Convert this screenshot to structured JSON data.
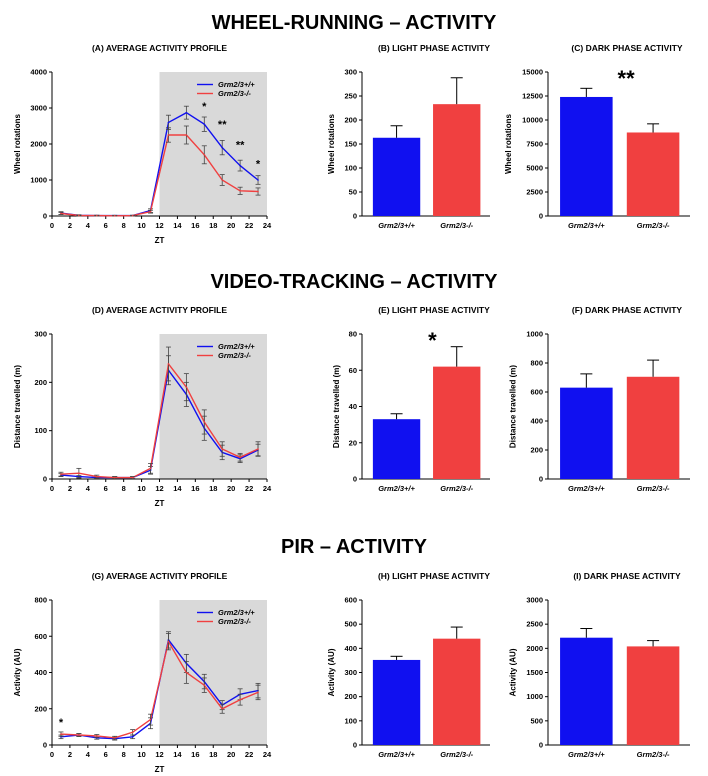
{
  "sections": [
    {
      "title": "WHEEL-RUNNING – ACTIVITY"
    },
    {
      "title": "VIDEO-TRACKING – ACTIVITY"
    },
    {
      "title": "PIR – ACTIVITY"
    }
  ],
  "colors": {
    "wildtype": "#1010f0",
    "knockout": "#f04040",
    "dark_phase_shade": "#d9d9d9"
  },
  "chart_data": [
    {
      "id": "A",
      "type": "line",
      "title": "(A) AVERAGE ACTIVITY PROFILE",
      "xlabel": "ZT",
      "ylabel": "Wheel rotations",
      "xlim": [
        0,
        24
      ],
      "ylim": [
        0,
        4000
      ],
      "xticks": [
        0,
        2,
        4,
        6,
        8,
        10,
        12,
        14,
        16,
        18,
        20,
        22,
        24
      ],
      "yticks": [
        0,
        1000,
        2000,
        3000,
        4000
      ],
      "shaded_x": [
        12,
        24
      ],
      "legend": "top-right",
      "x": [
        1,
        3,
        5,
        7,
        9,
        11,
        13,
        15,
        17,
        19,
        21,
        23
      ],
      "series": [
        {
          "name": "Grm2/3+/+",
          "color": "#1010f0",
          "values": [
            80,
            20,
            10,
            10,
            10,
            150,
            2600,
            2870,
            2550,
            1900,
            1400,
            1000
          ],
          "errors": [
            40,
            15,
            10,
            10,
            10,
            50,
            200,
            180,
            200,
            200,
            150,
            120
          ]
        },
        {
          "name": "Grm2/3-/-",
          "color": "#f04040",
          "values": [
            70,
            15,
            10,
            5,
            10,
            120,
            2250,
            2250,
            1700,
            1000,
            700,
            680
          ],
          "errors": [
            30,
            10,
            10,
            5,
            10,
            40,
            200,
            250,
            250,
            150,
            100,
            100
          ]
        }
      ],
      "annotations": [
        {
          "x": 17,
          "y": 2950,
          "text": "*"
        },
        {
          "x": 19,
          "y": 2450,
          "text": "**"
        },
        {
          "x": 21,
          "y": 1870,
          "text": "**"
        },
        {
          "x": 23,
          "y": 1350,
          "text": "*"
        }
      ]
    },
    {
      "id": "B",
      "type": "bar",
      "title": "(B) LIGHT PHASE ACTIVITY",
      "ylabel": "Wheel rotations",
      "ylim": [
        0,
        300
      ],
      "yticks": [
        0,
        50,
        100,
        150,
        200,
        250,
        300
      ],
      "categories": [
        "Grm2/3+/+",
        "Grm2/3-/-"
      ],
      "values": [
        163,
        233
      ],
      "errors": [
        25,
        55
      ],
      "colors": [
        "#1010f0",
        "#f04040"
      ],
      "annotation": ""
    },
    {
      "id": "C",
      "type": "bar",
      "title": "(C) DARK PHASE ACTIVITY",
      "ylabel": "Wheel rotations",
      "ylim": [
        0,
        15000
      ],
      "yticks": [
        0,
        2500,
        5000,
        7500,
        10000,
        12500,
        15000
      ],
      "categories": [
        "Grm2/3+/+",
        "Grm2/3-/-"
      ],
      "values": [
        12400,
        8700
      ],
      "errors": [
        900,
        900
      ],
      "colors": [
        "#1010f0",
        "#f04040"
      ],
      "annotation": "**"
    },
    {
      "id": "D",
      "type": "line",
      "title": "(D) AVERAGE ACTIVITY PROFILE",
      "xlabel": "ZT",
      "ylabel": "Distance travelled (m)",
      "xlim": [
        0,
        24
      ],
      "ylim": [
        0,
        300
      ],
      "xticks": [
        0,
        2,
        4,
        6,
        8,
        10,
        12,
        14,
        16,
        18,
        20,
        22,
        24
      ],
      "yticks": [
        0,
        100,
        200,
        300
      ],
      "shaded_x": [
        12,
        24
      ],
      "legend": "top-right",
      "x": [
        1,
        3,
        5,
        7,
        9,
        11,
        13,
        15,
        17,
        19,
        21,
        23
      ],
      "series": [
        {
          "name": "Grm2/3+/+",
          "color": "#1010f0",
          "values": [
            8,
            5,
            3,
            3,
            3,
            18,
            225,
            175,
            105,
            55,
            42,
            60
          ],
          "errors": [
            3,
            2,
            2,
            2,
            2,
            8,
            30,
            25,
            25,
            15,
            8,
            12
          ]
        },
        {
          "name": "Grm2/3-/-",
          "color": "#f04040",
          "values": [
            10,
            12,
            5,
            3,
            3,
            22,
            238,
            190,
            118,
            62,
            45,
            62
          ],
          "errors": [
            4,
            10,
            3,
            2,
            2,
            10,
            35,
            28,
            25,
            15,
            8,
            15
          ]
        }
      ],
      "annotations": []
    },
    {
      "id": "E",
      "type": "bar",
      "title": "(E) LIGHT PHASE ACTIVITY",
      "ylabel": "Distance travelled (m)",
      "ylim": [
        0,
        80
      ],
      "yticks": [
        0,
        20,
        40,
        60,
        80
      ],
      "categories": [
        "Grm2/3+/+",
        "Grm2/3-/-"
      ],
      "values": [
        33,
        62
      ],
      "errors": [
        3,
        11
      ],
      "colors": [
        "#1010f0",
        "#f04040"
      ],
      "annotation": "*"
    },
    {
      "id": "F",
      "type": "bar",
      "title": "(F) DARK PHASE ACTIVITY",
      "ylabel": "Distance travelled (m)",
      "ylim": [
        0,
        1000
      ],
      "yticks": [
        0,
        200,
        400,
        600,
        800,
        1000
      ],
      "categories": [
        "Grm2/3+/+",
        "Grm2/3-/-"
      ],
      "values": [
        630,
        705
      ],
      "errors": [
        95,
        115
      ],
      "colors": [
        "#1010f0",
        "#f04040"
      ],
      "annotation": ""
    },
    {
      "id": "G",
      "type": "line",
      "title": "(G) AVERAGE ACTIVITY PROFILE",
      "xlabel": "ZT",
      "ylabel": "Activity (AU)",
      "xlim": [
        0,
        24
      ],
      "ylim": [
        0,
        800
      ],
      "xticks": [
        0,
        2,
        4,
        6,
        8,
        10,
        12,
        14,
        16,
        18,
        20,
        22,
        24
      ],
      "yticks": [
        0,
        200,
        400,
        600,
        800
      ],
      "shaded_x": [
        12,
        24
      ],
      "legend": "top-right",
      "x": [
        1,
        3,
        5,
        7,
        9,
        11,
        13,
        15,
        17,
        19,
        21,
        23
      ],
      "series": [
        {
          "name": "Grm2/3+/+",
          "color": "#1010f0",
          "values": [
            45,
            55,
            40,
            35,
            45,
            120,
            580,
            450,
            350,
            220,
            280,
            300
          ],
          "errors": [
            10,
            8,
            8,
            8,
            10,
            30,
            45,
            50,
            40,
            25,
            30,
            40
          ]
        },
        {
          "name": "Grm2/3-/-",
          "color": "#f04040",
          "values": [
            60,
            55,
            50,
            40,
            70,
            140,
            570,
            400,
            330,
            200,
            250,
            290
          ],
          "errors": [
            12,
            8,
            8,
            8,
            15,
            30,
            45,
            60,
            40,
            25,
            30,
            40
          ]
        }
      ],
      "annotations": [
        {
          "x": 1,
          "y": 105,
          "text": "*"
        }
      ]
    },
    {
      "id": "H",
      "type": "bar",
      "title": "(H) LIGHT PHASE ACTIVITY",
      "ylabel": "Activity (AU)",
      "ylim": [
        0,
        600
      ],
      "yticks": [
        0,
        100,
        200,
        300,
        400,
        500,
        600
      ],
      "categories": [
        "Grm2/3+/+",
        "Grm2/3-/-"
      ],
      "values": [
        352,
        440
      ],
      "errors": [
        15,
        48
      ],
      "colors": [
        "#1010f0",
        "#f04040"
      ],
      "annotation": ""
    },
    {
      "id": "I",
      "type": "bar",
      "title": "(I) DARK PHASE ACTIVITY",
      "ylabel": "Activity (AU)",
      "ylim": [
        0,
        3000
      ],
      "yticks": [
        0,
        500,
        1000,
        1500,
        2000,
        2500,
        3000
      ],
      "categories": [
        "Grm2/3+/+",
        "Grm2/3-/-"
      ],
      "values": [
        2220,
        2040
      ],
      "errors": [
        190,
        120
      ],
      "colors": [
        "#1010f0",
        "#f04040"
      ],
      "annotation": ""
    }
  ]
}
